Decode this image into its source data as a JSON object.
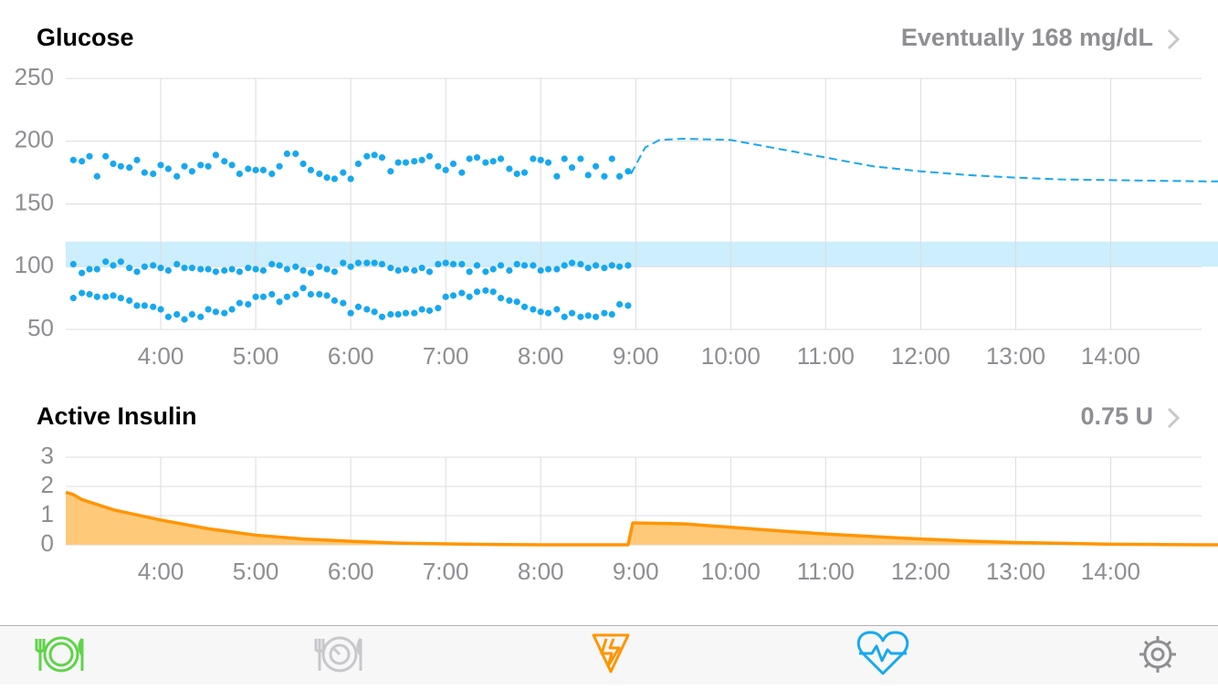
{
  "chart_data": [
    {
      "type": "scatter",
      "title": "Glucose",
      "annotation": "Eventually 168 mg/dL",
      "xlim": [
        3,
        15.13
      ],
      "xticks": [
        {
          "value": 4,
          "label": "4:00"
        },
        {
          "value": 5,
          "label": "5:00"
        },
        {
          "value": 6,
          "label": "6:00"
        },
        {
          "value": 7,
          "label": "7:00"
        },
        {
          "value": 8,
          "label": "8:00"
        },
        {
          "value": 9,
          "label": "9:00"
        },
        {
          "value": 10,
          "label": "10:00"
        },
        {
          "value": 11,
          "label": "11:00"
        },
        {
          "value": 12,
          "label": "12:00"
        },
        {
          "value": 13,
          "label": "13:00"
        },
        {
          "value": 14,
          "label": "14:00"
        }
      ],
      "ylim": [
        50,
        250
      ],
      "yticks": [
        50,
        100,
        150,
        200,
        250
      ],
      "grid": true,
      "target_range": [
        100,
        120
      ],
      "target_color": "#cdeefc",
      "x": [
        3.08,
        3.17,
        3.25,
        3.33,
        3.42,
        3.5,
        3.58,
        3.67,
        3.75,
        3.83,
        3.92,
        4,
        4.08,
        4.17,
        4.25,
        4.33,
        4.42,
        4.5,
        4.58,
        4.67,
        4.75,
        4.83,
        4.92,
        5,
        5.08,
        5.17,
        5.25,
        5.33,
        5.42,
        5.5,
        5.58,
        5.67,
        5.75,
        5.83,
        5.92,
        6,
        6.08,
        6.17,
        6.25,
        6.33,
        6.42,
        6.5,
        6.58,
        6.67,
        6.75,
        6.83,
        6.92,
        7,
        7.08,
        7.17,
        7.25,
        7.33,
        7.42,
        7.5,
        7.58,
        7.67,
        7.75,
        7.83,
        7.92,
        8,
        8.08,
        8.17,
        8.25,
        8.33,
        8.42,
        8.5,
        8.58,
        8.67,
        8.75,
        8.83,
        8.92
      ],
      "series": [
        {
          "color": "#17a8f0",
          "values": [
            185,
            184,
            188,
            172,
            188,
            182,
            180,
            179,
            185,
            175,
            174,
            181,
            178,
            172,
            180,
            176,
            181,
            180,
            189,
            184,
            181,
            174,
            178,
            177,
            177,
            174,
            180,
            190,
            190,
            182,
            177,
            174,
            171,
            170,
            175,
            170,
            182,
            188,
            189,
            187,
            176,
            183,
            183,
            184,
            185,
            188,
            180,
            177,
            182,
            175,
            186,
            187,
            183,
            184,
            186,
            178,
            174,
            175,
            186,
            185,
            183,
            172,
            186,
            179,
            186,
            173,
            180,
            172,
            186,
            172,
            176
          ]
        },
        {
          "color": "#17a8f0",
          "values": [
            102,
            95,
            98,
            98,
            104,
            101,
            104,
            99,
            96,
            100,
            101,
            99,
            97,
            102,
            99,
            99,
            98,
            98,
            96,
            97,
            98,
            96,
            99,
            98,
            97,
            102,
            101,
            98,
            100,
            97,
            95,
            100,
            98,
            96,
            103,
            100,
            103,
            103,
            103,
            102,
            99,
            97,
            98,
            97,
            99,
            96,
            102,
            103,
            102,
            102,
            96,
            101,
            96,
            98,
            101,
            97,
            102,
            101,
            101,
            97,
            98,
            98,
            101,
            103,
            102,
            99,
            101,
            99,
            101,
            100,
            101
          ]
        },
        {
          "color": "#17a8f0",
          "values": [
            75,
            79,
            78,
            76,
            76,
            77,
            75,
            73,
            69,
            69,
            68,
            66,
            60,
            62,
            58,
            62,
            60,
            66,
            64,
            63,
            66,
            71,
            70,
            76,
            76,
            78,
            72,
            76,
            78,
            83,
            78,
            78,
            77,
            73,
            71,
            63,
            68,
            66,
            64,
            60,
            62,
            62,
            63,
            63,
            66,
            65,
            67,
            76,
            77,
            79,
            76,
            80,
            81,
            80,
            75,
            73,
            72,
            68,
            66,
            64,
            63,
            66,
            60,
            63,
            60,
            61,
            60,
            63,
            62,
            70,
            69
          ]
        },
        {
          "color": "#17a8f0",
          "line": "dashed",
          "x": [
            8.95,
            9.1,
            9.25,
            9.5,
            10,
            10.5,
            11,
            11.5,
            12,
            12.5,
            13,
            13.5,
            14,
            14.5,
            15,
            15.13
          ],
          "values": [
            174,
            195,
            201,
            202,
            201,
            194,
            187,
            180,
            176,
            173,
            171,
            169.5,
            169,
            168.5,
            168,
            168
          ]
        }
      ]
    },
    {
      "type": "area",
      "title": "Active Insulin",
      "annotation": "0.75 U",
      "xlim": [
        3,
        15.13
      ],
      "xticks": [
        {
          "value": 4,
          "label": "4:00"
        },
        {
          "value": 5,
          "label": "5:00"
        },
        {
          "value": 6,
          "label": "6:00"
        },
        {
          "value": 7,
          "label": "7:00"
        },
        {
          "value": 8,
          "label": "8:00"
        },
        {
          "value": 9,
          "label": "9:00"
        },
        {
          "value": 10,
          "label": "10:00"
        },
        {
          "value": 11,
          "label": "11:00"
        },
        {
          "value": 12,
          "label": "12:00"
        },
        {
          "value": 13,
          "label": "13:00"
        },
        {
          "value": 14,
          "label": "14:00"
        }
      ],
      "ylim": [
        0,
        3
      ],
      "yticks": [
        0,
        1,
        2,
        3
      ],
      "grid": true,
      "color": "#ff9500",
      "fill": "#ffc97a",
      "x": [
        3,
        3.08,
        3.17,
        3.5,
        4,
        4.5,
        5,
        5.5,
        6,
        6.5,
        7,
        7.5,
        8,
        8.92,
        8.97,
        9.5,
        10,
        10.5,
        11,
        11.5,
        12,
        12.5,
        13,
        13.5,
        14,
        14.5,
        15,
        15.13
      ],
      "values": [
        1.8,
        1.72,
        1.55,
        1.2,
        0.85,
        0.55,
        0.33,
        0.2,
        0.12,
        0.06,
        0.03,
        0.01,
        0,
        0,
        0.75,
        0.72,
        0.6,
        0.48,
        0.37,
        0.28,
        0.2,
        0.13,
        0.08,
        0.05,
        0.02,
        0.01,
        0,
        0
      ]
    }
  ]
}
